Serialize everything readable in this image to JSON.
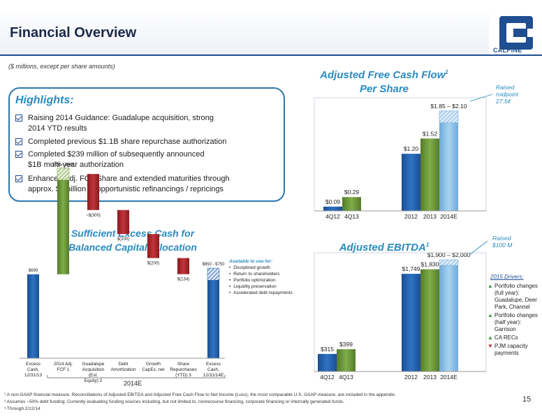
{
  "header": {
    "title": "Financial Overview",
    "logo_text": "CALPINE"
  },
  "subtitle": "($ millions, except per share amounts)",
  "highlights": {
    "title": "Highlights:",
    "items": [
      {
        "line1": "Raising 2014 Guidance: Guadalupe acquisition, strong",
        "line2": "2014 YTD results"
      },
      {
        "line1": "Completed previous $1.1B share repurchase authorization",
        "line2": ""
      },
      {
        "line1": "Completed $239 million of subsequently announced",
        "line2": "$1B multi-year authorization"
      },
      {
        "line1": "Enhanced Adj. FCF/Share and extended maturities through",
        "line2": "approx. $6 billion of opportunistic refinancings / repricings"
      }
    ]
  },
  "fcf": {
    "title_line1": "Adjusted Free Cash Flow",
    "title_sup": "1",
    "title_line2": "Per Share",
    "note_line1": "Raised",
    "note_line2": "midpoint",
    "note_line3": "27.5¢"
  },
  "ebitda": {
    "title": "Adjusted EBITDA",
    "title_sup": "1",
    "note_line1": "Raised",
    "note_line2": "$100 M"
  },
  "excess": {
    "title_line1": "Sufficient Excess Cash for",
    "title_line2": "Balanced Capital Allocation",
    "bracket_label": "2014E",
    "available": {
      "title": "Available to use for:",
      "items": [
        "Disciplined growth",
        "Return to shareholders",
        "Portfolio optimization",
        "Liquidity preservation",
        "Accelerated debt repayments"
      ]
    }
  },
  "drivers": {
    "title": "2015 Drivers:",
    "items": [
      {
        "dir": "up",
        "text": "Portfolio changes (full year): Guadalupe, Deer Park, Channel"
      },
      {
        "dir": "up",
        "text": "Portfolio changes (half year): Garrison"
      },
      {
        "dir": "up",
        "text": "CA RECs"
      },
      {
        "dir": "down",
        "text": "PJM capacity payments"
      }
    ]
  },
  "footnotes": {
    "line1": "¹ A non-GAAP financial measure.  Reconciliations of Adjusted EBITDA and Adjusted Free Cash Flow to Net Income (Loss), the most comparable U.S. GAAP measure, are included in the appendix.",
    "line2": "² Assumes ~50% debt funding. Currently evaluating funding sources including, but not limited to, nonrecourse financing, corporate financing or internally generated funds.",
    "line3": "³ Through 2/12/14"
  },
  "page_number": "15",
  "colors": {
    "blue": "#1f5aa6",
    "green": "#6e9a3a",
    "lightblue": "#8fc2e8",
    "red": "#a32125",
    "accent": "#2a8bbf"
  },
  "chart_data": [
    {
      "type": "bar",
      "title": "Adjusted Free Cash Flow Per Share",
      "groups": [
        {
          "bars": [
            {
              "category": "4Q12",
              "value": 0.09,
              "label": "$0.09",
              "color": "blue"
            },
            {
              "category": "4Q13",
              "value": 0.29,
              "label": "$0.29",
              "color": "green"
            }
          ]
        },
        {
          "bars": [
            {
              "category": "2012",
              "value": 1.2,
              "label": "$1.20",
              "color": "blue"
            },
            {
              "category": "2013",
              "value": 1.52,
              "label": "$1.52",
              "color": "green"
            },
            {
              "category": "2014E",
              "value": 1.85,
              "high": 2.1,
              "label": "$1.85 – $2.10",
              "color": "lightblue"
            }
          ]
        }
      ],
      "ylim": [
        0,
        2.2
      ]
    },
    {
      "type": "bar",
      "title": "Adjusted EBITDA",
      "groups": [
        {
          "bars": [
            {
              "category": "4Q12",
              "value": 315,
              "label": "$315",
              "color": "blue"
            },
            {
              "category": "4Q13",
              "value": 399,
              "label": "$399",
              "color": "green"
            }
          ]
        },
        {
          "bars": [
            {
              "category": "2012",
              "value": 1749,
              "label": "$1,749",
              "color": "blue"
            },
            {
              "category": "2013",
              "value": 1830,
              "label": "$1,830",
              "color": "green"
            },
            {
              "category": "2014E",
              "value": 1900,
              "high": 2000,
              "label": "$1,900 – $2,000",
              "color": "lightblue"
            }
          ]
        }
      ],
      "ylim": [
        0,
        2100
      ]
    },
    {
      "type": "bar",
      "subtype": "waterfall",
      "title": "Sufficient Excess Cash for Balanced Capital Allocation",
      "categories": [
        "Excess Cash, 12/31/13",
        "2014 Adj. FCF",
        "Guadalupe Acquisition (Est. Equity)",
        "Debt Amortization",
        "Growth CapEx, net",
        "Share Repurchases (YTD)",
        "Excess Cash, 12/31/14E"
      ],
      "category_superscripts": [
        "",
        "1",
        "2",
        "",
        "",
        "3",
        ""
      ],
      "steps": [
        {
          "kind": "total",
          "value": 699,
          "label": "$699"
        },
        {
          "kind": "increase",
          "low": 785,
          "high": 885,
          "label": "$785 - $885"
        },
        {
          "kind": "decrease",
          "value": -300,
          "label": "~$(300)"
        },
        {
          "kind": "decrease",
          "value": -200,
          "label": "$(200)"
        },
        {
          "kind": "decrease",
          "value": -200,
          "label": "$(200)"
        },
        {
          "kind": "decrease",
          "value": -134,
          "label": "$(134)"
        },
        {
          "kind": "total",
          "low": 650,
          "high": 750,
          "label": "$650 - $750"
        }
      ]
    }
  ]
}
